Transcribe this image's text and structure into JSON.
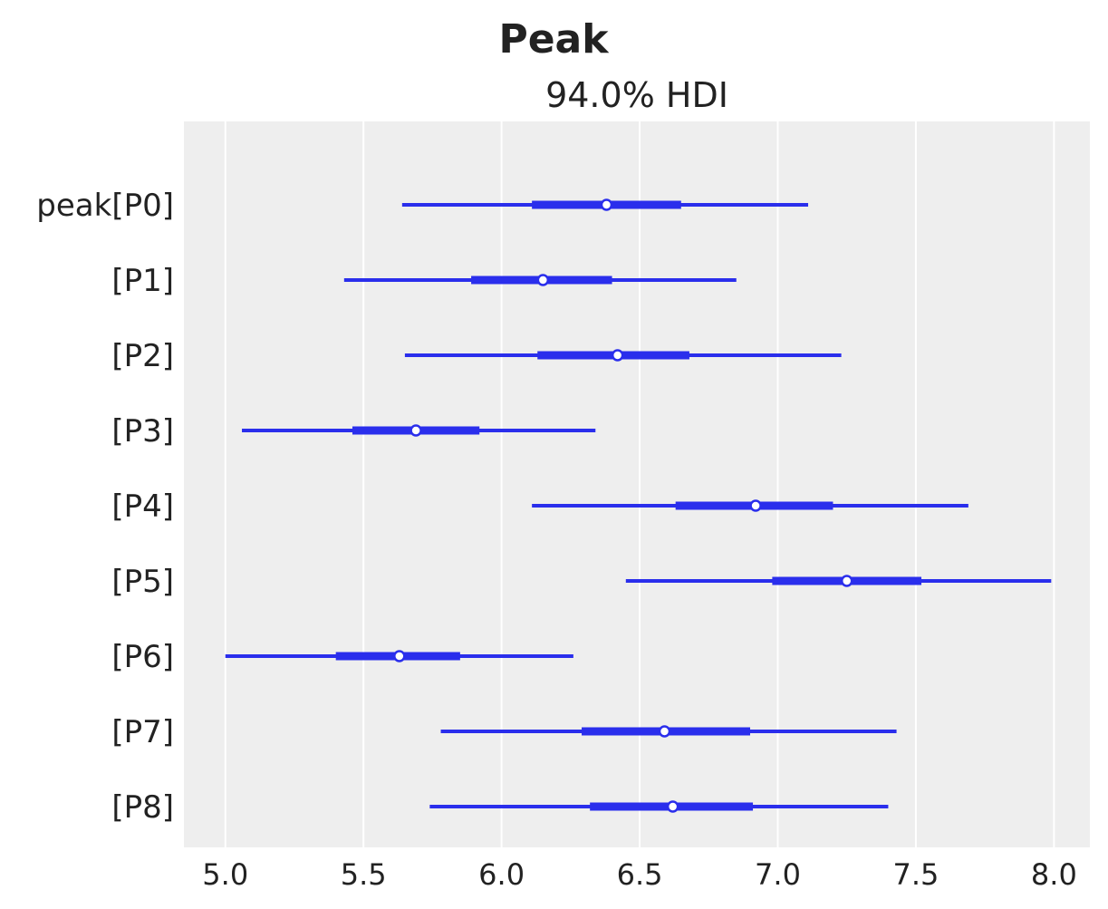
{
  "chart_data": {
    "type": "forest",
    "title": "Peak",
    "subtitle": "94.0% HDI",
    "xlim": [
      4.85,
      8.13
    ],
    "xticks": [
      "5.0",
      "5.5",
      "6.0",
      "6.5",
      "7.0",
      "7.5",
      "8.0"
    ],
    "grid": true,
    "color": "#2a2eec",
    "background": "#eeeeee",
    "rows": [
      {
        "label": "peak[P0]",
        "hdi94": [
          5.64,
          7.11
        ],
        "iqr": [
          6.11,
          6.65
        ],
        "median": 6.38
      },
      {
        "label": "[P1]",
        "hdi94": [
          5.43,
          6.85
        ],
        "iqr": [
          5.89,
          6.4
        ],
        "median": 6.15
      },
      {
        "label": "[P2]",
        "hdi94": [
          5.65,
          7.23
        ],
        "iqr": [
          6.13,
          6.68
        ],
        "median": 6.42
      },
      {
        "label": "[P3]",
        "hdi94": [
          5.06,
          6.34
        ],
        "iqr": [
          5.46,
          5.92
        ],
        "median": 5.69
      },
      {
        "label": "[P4]",
        "hdi94": [
          6.11,
          7.69
        ],
        "iqr": [
          6.63,
          7.2
        ],
        "median": 6.92
      },
      {
        "label": "[P5]",
        "hdi94": [
          6.45,
          7.99
        ],
        "iqr": [
          6.98,
          7.52
        ],
        "median": 7.25
      },
      {
        "label": "[P6]",
        "hdi94": [
          5.0,
          6.26
        ],
        "iqr": [
          5.4,
          5.85
        ],
        "median": 5.63
      },
      {
        "label": "[P7]",
        "hdi94": [
          5.78,
          7.43
        ],
        "iqr": [
          6.29,
          6.9
        ],
        "median": 6.59
      },
      {
        "label": "[P8]",
        "hdi94": [
          5.74,
          7.4
        ],
        "iqr": [
          6.32,
          6.91
        ],
        "median": 6.62
      }
    ]
  }
}
